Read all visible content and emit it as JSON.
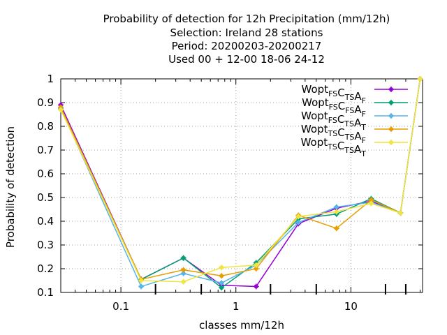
{
  "chart_data": {
    "type": "line",
    "title": [
      "Probability of detection  for 12h Precipitation (mm/12h)",
      "Selection: Ireland      28 stations",
      "Period: 20200203-20200217",
      "Used  00 + 12-00 18-06 24-12"
    ],
    "xlabel": "classes mm/12h",
    "ylabel": "Probability of detection",
    "xscale": "log",
    "xlim": [
      0.03,
      42
    ],
    "ylim": [
      0.1,
      1.0
    ],
    "x_ticks": [
      0.1,
      1,
      10
    ],
    "x_tick_labels": [
      "0.1",
      "1",
      "10"
    ],
    "y_ticks": [
      0.1,
      0.2,
      0.3,
      0.4,
      0.5,
      0.6,
      0.7,
      0.8,
      0.9,
      1.0
    ],
    "y_tick_labels": [
      "0.1",
      "0.2",
      "0.3",
      "0.4",
      "0.5",
      "0.6",
      "0.7",
      "0.8",
      "0.9",
      "1"
    ],
    "class_marks": [
      0.2,
      0.5,
      2,
      5,
      20,
      30
    ],
    "grid": true,
    "legend_position": "top-right",
    "x": [
      0.03,
      0.15,
      0.35,
      0.75,
      1.5,
      3.5,
      7.5,
      15,
      27,
      40
    ],
    "series": [
      {
        "label_main": [
          "Wopt",
          "C",
          "A"
        ],
        "label_subs": [
          "FS",
          "TS",
          "F"
        ],
        "color": "#9400d3",
        "marker": "plus",
        "values": [
          0.89,
          0.155,
          0.245,
          0.13,
          0.125,
          0.39,
          0.455,
          0.485,
          0.435,
          1.0
        ]
      },
      {
        "label_main": [
          "Wopt",
          "C",
          "A"
        ],
        "label_subs": [
          "FS",
          "FS",
          "F"
        ],
        "color": "#009e73",
        "marker": "plus",
        "values": [
          0.88,
          0.155,
          0.245,
          0.12,
          0.225,
          0.41,
          0.43,
          0.495,
          0.435,
          1.0
        ]
      },
      {
        "label_main": [
          "Wopt",
          "C",
          "A"
        ],
        "label_subs": [
          "FS",
          "TS",
          "T"
        ],
        "color": "#56b4e9",
        "marker": "plus",
        "values": [
          0.875,
          0.125,
          0.18,
          0.14,
          0.215,
          0.395,
          0.46,
          0.48,
          0.435,
          1.0
        ]
      },
      {
        "label_main": [
          "Wopt",
          "C",
          "A"
        ],
        "label_subs": [
          "TS",
          "TS",
          "F"
        ],
        "color": "#e69f00",
        "marker": "plus",
        "values": [
          0.88,
          0.155,
          0.195,
          0.17,
          0.2,
          0.425,
          0.37,
          0.49,
          0.435,
          1.0
        ]
      },
      {
        "label_main": [
          "Wopt",
          "C",
          "A"
        ],
        "label_subs": [
          "TS",
          "TS",
          "T"
        ],
        "color": "#f0e442",
        "marker": "plus",
        "values": [
          0.87,
          0.15,
          0.145,
          0.205,
          0.215,
          0.42,
          0.44,
          0.475,
          0.435,
          1.0
        ]
      }
    ]
  }
}
